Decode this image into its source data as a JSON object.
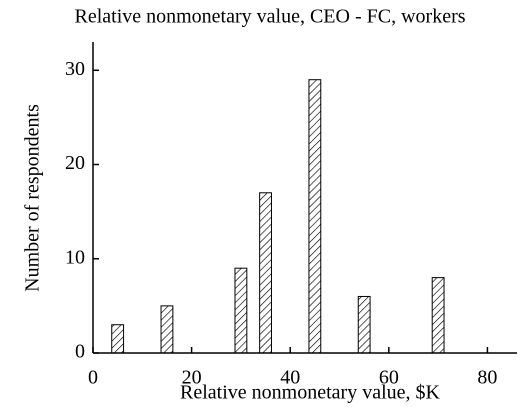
{
  "chart_data": {
    "type": "bar",
    "title": "Relative nonmonetary value, CEO - FC, workers",
    "x_label": "Relative nonmonetary value, $K",
    "y_label": "Number of respondents",
    "x": [
      5,
      15,
      30,
      35,
      45,
      55,
      70
    ],
    "values": [
      3,
      5,
      9,
      17,
      29,
      6,
      8
    ],
    "color": "#000000",
    "xlim": [
      0,
      86
    ],
    "xticks": [
      0,
      20,
      40,
      60,
      80
    ],
    "ylim": [
      0,
      33
    ],
    "yticks": [
      0,
      10,
      20,
      30
    ],
    "grid": false
  }
}
